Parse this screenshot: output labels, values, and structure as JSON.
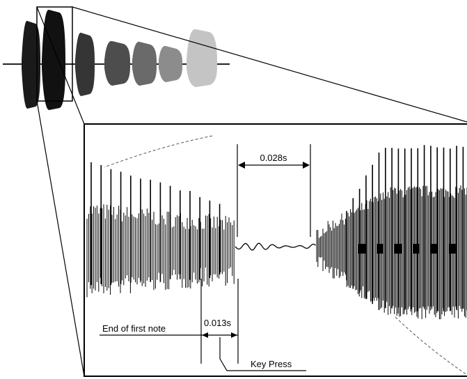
{
  "annotations": {
    "interval_label": "0.028s",
    "gap_label": "0.013s",
    "end_note_label": "End of first note",
    "key_press_label": "Key Press"
  },
  "overview": {
    "note_count": 7
  }
}
